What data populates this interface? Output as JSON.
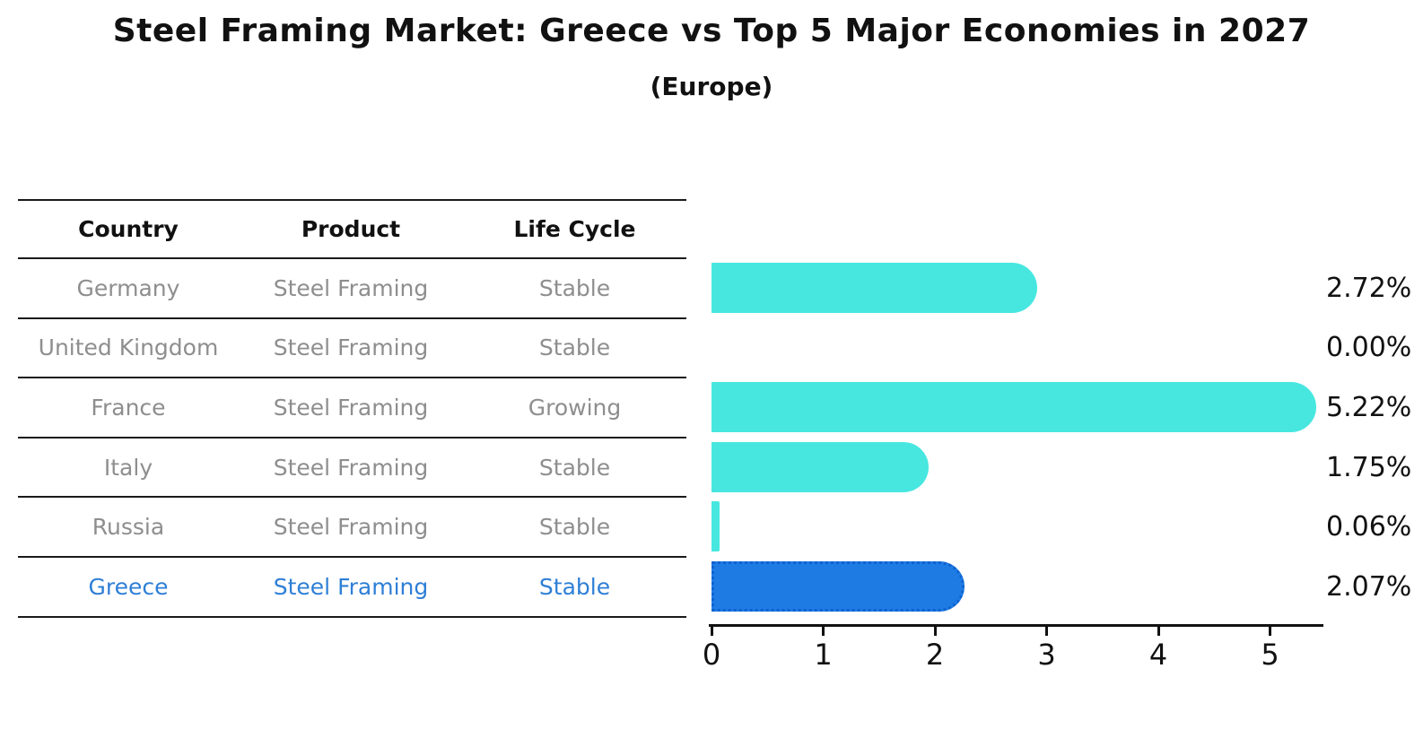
{
  "title": "Steel Framing Market: Greece vs Top 5 Major Economies in 2027",
  "subtitle": "(Europe)",
  "table": {
    "headers": [
      "Country",
      "Product",
      "Life Cycle"
    ],
    "rows": [
      {
        "country": "Germany",
        "product": "Steel Framing",
        "life_cycle": "Stable",
        "highlight": false
      },
      {
        "country": "United Kingdom",
        "product": "Steel Framing",
        "life_cycle": "Stable",
        "highlight": false
      },
      {
        "country": "France",
        "product": "Steel Framing",
        "life_cycle": "Growing",
        "highlight": false
      },
      {
        "country": "Italy",
        "product": "Steel Framing",
        "life_cycle": "Stable",
        "highlight": false
      },
      {
        "country": "Russia",
        "product": "Steel Framing",
        "life_cycle": "Stable",
        "highlight": false
      },
      {
        "country": "Greece",
        "product": "Steel Framing",
        "life_cycle": "Stable",
        "highlight": true
      }
    ]
  },
  "chart_data": {
    "type": "bar",
    "orientation": "horizontal",
    "title": "Steel Framing Market: Greece vs Top 5 Major Economies in 2027",
    "subtitle": "(Europe)",
    "categories": [
      "Germany",
      "United Kingdom",
      "France",
      "Italy",
      "Russia",
      "Greece"
    ],
    "values": [
      2.72,
      0.0,
      5.22,
      1.75,
      0.06,
      2.07
    ],
    "value_labels": [
      "2.72%",
      "0.00%",
      "5.22%",
      "1.75%",
      "0.06%",
      "2.07%"
    ],
    "x_ticks": [
      "0",
      "1",
      "2",
      "3",
      "4",
      "5"
    ],
    "xlim": [
      0,
      5.5
    ],
    "grid": false,
    "legend": false,
    "bar_color": "#47e7e0",
    "highlight_bar_color": "#1e7be4",
    "highlight_index": 5,
    "axis_color": "#111111"
  },
  "colors": {
    "table_text": "#8e8e8e",
    "highlight_text": "#2e7fd6",
    "header_text": "#111111"
  }
}
